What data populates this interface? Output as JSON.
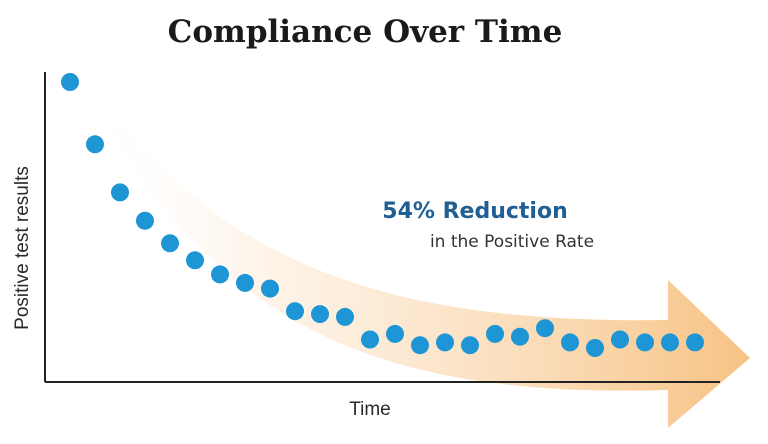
{
  "chart_data": {
    "type": "scatter",
    "title": "Compliance Over Time",
    "xlabel": "Time",
    "ylabel": "Positive test results",
    "x": [
      1,
      2,
      3,
      4,
      5,
      6,
      7,
      8,
      9,
      10,
      11,
      12,
      13,
      14,
      15,
      16,
      17,
      18,
      19,
      20,
      21,
      22,
      23,
      24,
      25,
      26
    ],
    "y": [
      100,
      78,
      61,
      51,
      43,
      37,
      32,
      29,
      27,
      19,
      18,
      17,
      9,
      11,
      7,
      8,
      7,
      11,
      10,
      13,
      8,
      6,
      9,
      8,
      8,
      8
    ],
    "xlim": [
      0,
      27
    ],
    "ylim": [
      0,
      100
    ],
    "grid": false,
    "annotation": {
      "headline": "54% Reduction",
      "subline": "in the Positive Rate"
    },
    "colors": {
      "points": "#1e95d4",
      "headline": "#1f5f93",
      "arrow": "#f7c283",
      "axis": "#222222"
    }
  }
}
